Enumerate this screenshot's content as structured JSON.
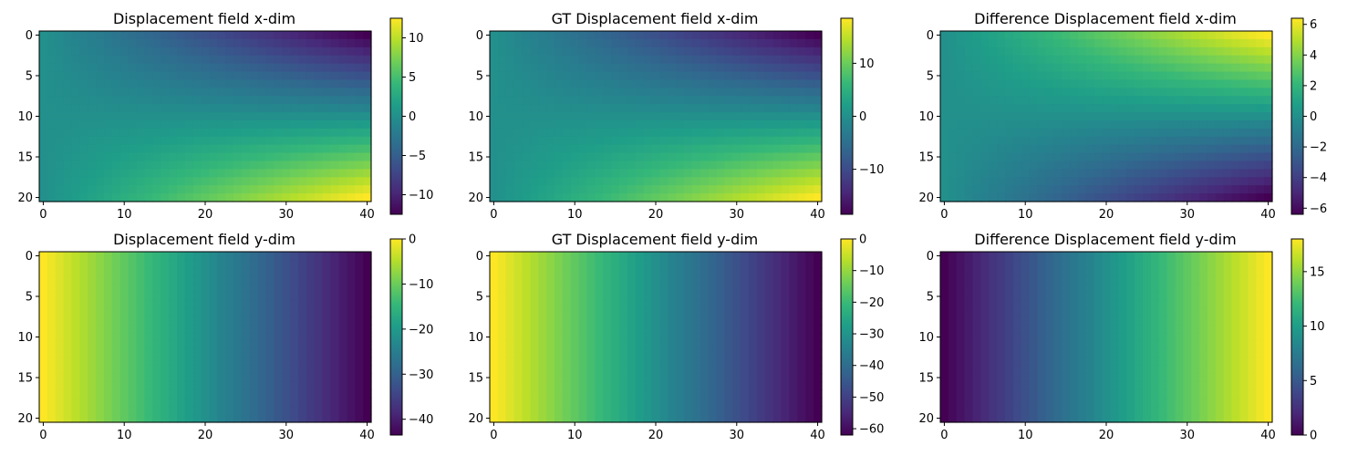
{
  "chart_data": [
    {
      "type": "heatmap",
      "title": "Displacement field x-dim",
      "x_range": [
        0,
        40
      ],
      "y_range": [
        0,
        20
      ],
      "x_ticks": [
        0,
        10,
        20,
        30,
        40
      ],
      "y_ticks": [
        0,
        5,
        10,
        15,
        20
      ],
      "colorbar_range": [
        -12.5,
        12.5
      ],
      "colorbar_ticks": [
        10,
        5,
        0,
        -5,
        -10
      ],
      "colorbar_tick_labels": [
        "10",
        "5",
        "0",
        "−5",
        "−10"
      ],
      "field": {
        "kind": "shear",
        "scale": 12.5
      }
    },
    {
      "type": "heatmap",
      "title": "GT Displacement field x-dim",
      "x_range": [
        0,
        40
      ],
      "y_range": [
        0,
        20
      ],
      "x_ticks": [
        0,
        10,
        20,
        30,
        40
      ],
      "y_ticks": [
        0,
        5,
        10,
        15,
        20
      ],
      "colorbar_range": [
        -18.5,
        18.5
      ],
      "colorbar_ticks": [
        10,
        0,
        -10
      ],
      "colorbar_tick_labels": [
        "10",
        "0",
        "−10"
      ],
      "field": {
        "kind": "shear",
        "scale": 18.5
      }
    },
    {
      "type": "heatmap",
      "title": "Difference Displacement field x-dim",
      "x_range": [
        0,
        40
      ],
      "y_range": [
        0,
        20
      ],
      "x_ticks": [
        0,
        10,
        20,
        30,
        40
      ],
      "y_ticks": [
        0,
        5,
        10,
        15,
        20
      ],
      "colorbar_range": [
        -6.4,
        6.4
      ],
      "colorbar_ticks": [
        6,
        4,
        2,
        0,
        -2,
        -4,
        -6
      ],
      "colorbar_tick_labels": [
        "6",
        "4",
        "2",
        "0",
        "−2",
        "−4",
        "−6"
      ],
      "field": {
        "kind": "shear",
        "scale": -6.4
      }
    },
    {
      "type": "heatmap",
      "title": "Displacement field y-dim",
      "x_range": [
        0,
        40
      ],
      "y_range": [
        0,
        20
      ],
      "x_ticks": [
        0,
        10,
        20,
        30,
        40
      ],
      "y_ticks": [
        0,
        5,
        10,
        15,
        20
      ],
      "colorbar_range": [
        -43.5,
        0
      ],
      "colorbar_ticks": [
        0,
        -10,
        -20,
        -30,
        -40
      ],
      "colorbar_tick_labels": [
        "0",
        "−10",
        "−20",
        "−30",
        "−40"
      ],
      "field": {
        "kind": "ramp",
        "start": 0,
        "end": -43.5
      }
    },
    {
      "type": "heatmap",
      "title": "GT Displacement field y-dim",
      "x_range": [
        0,
        40
      ],
      "y_range": [
        0,
        20
      ],
      "x_ticks": [
        0,
        10,
        20,
        30,
        40
      ],
      "y_ticks": [
        0,
        5,
        10,
        15,
        20
      ],
      "colorbar_range": [
        -62,
        0
      ],
      "colorbar_ticks": [
        0,
        -10,
        -20,
        -30,
        -40,
        -50,
        -60
      ],
      "colorbar_tick_labels": [
        "0",
        "−10",
        "−20",
        "−30",
        "−40",
        "−50",
        "−60"
      ],
      "field": {
        "kind": "ramp",
        "start": 0,
        "end": -62
      }
    },
    {
      "type": "heatmap",
      "title": "Difference Displacement field y-dim",
      "x_range": [
        0,
        40
      ],
      "y_range": [
        0,
        20
      ],
      "x_ticks": [
        0,
        10,
        20,
        30,
        40
      ],
      "y_ticks": [
        0,
        5,
        10,
        15,
        20
      ],
      "colorbar_range": [
        0,
        18
      ],
      "colorbar_ticks": [
        15,
        10,
        5,
        0
      ],
      "colorbar_tick_labels": [
        "15",
        "10",
        "5",
        "0"
      ],
      "field": {
        "kind": "ramp",
        "start": 0,
        "end": 18
      }
    }
  ]
}
